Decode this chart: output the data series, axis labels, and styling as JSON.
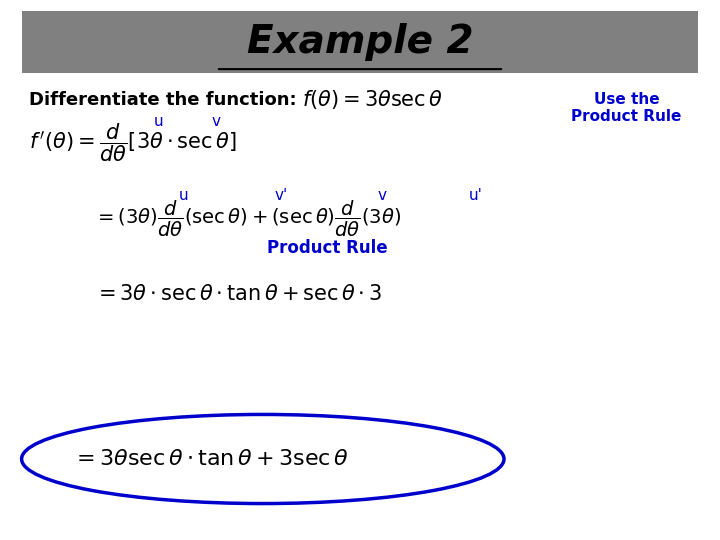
{
  "title": "Example 2",
  "title_fontsize": 28,
  "title_bg_color": "#808080",
  "background_color": "#ffffff",
  "text_color_black": "#000000",
  "text_color_blue": "#0000cc",
  "diff_text": "Differentiate the function:",
  "use_product_rule_text": "Use the\nProduct Rule",
  "product_rule_label": "Product Rule",
  "formula_f": "$f(\\theta) = 3\\theta\\sec\\theta$",
  "formula_fprime": "$f\\,'(\\theta) = \\dfrac{d}{d\\theta}\\left[3\\theta\\cdot\\sec\\theta\\right]$",
  "formula_line2": "$= (3\\theta)\\dfrac{d}{d\\theta}(\\sec\\theta)+(\\sec\\theta)\\dfrac{d}{d\\theta}(3\\theta)$",
  "formula_line3": "$= 3\\theta\\cdot\\sec\\theta\\cdot\\tan\\theta + \\sec\\theta\\cdot 3$",
  "formula_line4": "$= 3\\theta\\sec\\theta\\cdot\\tan\\theta + 3\\sec\\theta$",
  "label_u1": "u",
  "label_v1": "v",
  "label_u2": "u",
  "label_vp": "v'",
  "label_v2": "v",
  "label_up": "u'"
}
